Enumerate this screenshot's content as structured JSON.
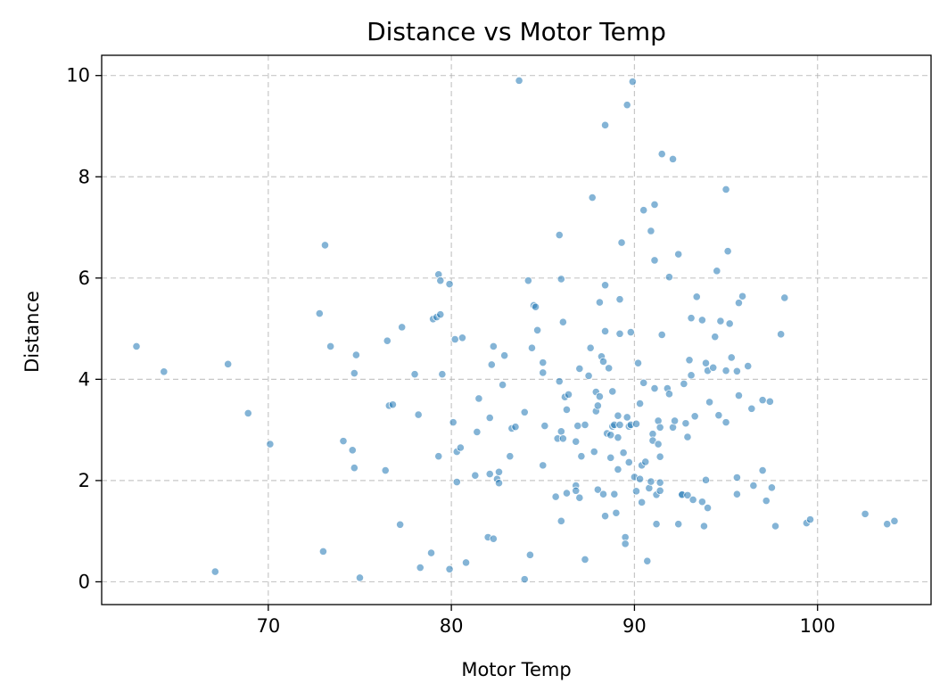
{
  "chart_data": {
    "type": "scatter",
    "title": "Distance vs Motor Temp",
    "xlabel": "Motor Temp",
    "ylabel": "Distance",
    "xlim": [
      60.9,
      106.2
    ],
    "ylim": [
      -0.45,
      10.4
    ],
    "xticks": [
      70,
      80,
      90,
      100
    ],
    "yticks": [
      0,
      2,
      4,
      6,
      8,
      10
    ],
    "xtick_labels": [
      "70",
      "80",
      "90",
      "100"
    ],
    "ytick_labels": [
      "0",
      "2",
      "4",
      "6",
      "8",
      "10"
    ],
    "grid": true,
    "color": "#1f77b4",
    "points": [
      [
        62.8,
        4.65
      ],
      [
        64.3,
        4.15
      ],
      [
        67.1,
        0.2
      ],
      [
        67.8,
        4.3
      ],
      [
        68.9,
        3.33
      ],
      [
        70.1,
        2.72
      ],
      [
        72.8,
        5.3
      ],
      [
        73.0,
        0.6
      ],
      [
        73.1,
        6.65
      ],
      [
        73.4,
        4.65
      ],
      [
        74.1,
        2.78
      ],
      [
        74.6,
        2.6
      ],
      [
        74.7,
        4.12
      ],
      [
        74.7,
        2.25
      ],
      [
        74.8,
        4.48
      ],
      [
        75.0,
        0.08
      ],
      [
        76.4,
        2.2
      ],
      [
        76.5,
        4.76
      ],
      [
        76.6,
        3.48
      ],
      [
        76.8,
        3.5
      ],
      [
        77.2,
        1.13
      ],
      [
        77.3,
        5.03
      ],
      [
        78.0,
        4.1
      ],
      [
        78.2,
        3.3
      ],
      [
        78.3,
        0.28
      ],
      [
        78.9,
        0.57
      ],
      [
        79.0,
        5.19
      ],
      [
        79.2,
        5.23
      ],
      [
        79.3,
        2.48
      ],
      [
        79.3,
        6.07
      ],
      [
        79.4,
        5.95
      ],
      [
        79.4,
        5.28
      ],
      [
        79.5,
        4.1
      ],
      [
        79.9,
        5.88
      ],
      [
        79.9,
        0.25
      ],
      [
        80.1,
        3.15
      ],
      [
        80.2,
        4.79
      ],
      [
        80.3,
        2.57
      ],
      [
        80.3,
        1.97
      ],
      [
        80.5,
        2.65
      ],
      [
        80.6,
        4.82
      ],
      [
        80.8,
        0.38
      ],
      [
        81.3,
        2.1
      ],
      [
        81.4,
        2.96
      ],
      [
        81.5,
        3.62
      ],
      [
        82.0,
        0.88
      ],
      [
        82.1,
        2.13
      ],
      [
        82.1,
        3.24
      ],
      [
        82.2,
        4.29
      ],
      [
        82.3,
        4.65
      ],
      [
        82.3,
        0.85
      ],
      [
        82.5,
        2.03
      ],
      [
        82.6,
        2.17
      ],
      [
        82.6,
        1.95
      ],
      [
        82.8,
        3.89
      ],
      [
        82.9,
        4.47
      ],
      [
        83.2,
        2.48
      ],
      [
        83.3,
        3.03
      ],
      [
        83.5,
        3.06
      ],
      [
        83.7,
        9.9
      ],
      [
        84.0,
        3.35
      ],
      [
        84.0,
        0.05
      ],
      [
        84.2,
        5.95
      ],
      [
        84.3,
        0.53
      ],
      [
        84.4,
        4.62
      ],
      [
        84.5,
        5.46
      ],
      [
        84.6,
        5.43
      ],
      [
        84.7,
        4.97
      ],
      [
        85.0,
        4.13
      ],
      [
        85.0,
        2.3
      ],
      [
        85.0,
        4.33
      ],
      [
        85.1,
        3.08
      ],
      [
        85.7,
        1.68
      ],
      [
        85.8,
        2.83
      ],
      [
        85.9,
        3.96
      ],
      [
        85.9,
        6.85
      ],
      [
        86.0,
        5.98
      ],
      [
        86.0,
        2.97
      ],
      [
        86.0,
        1.2
      ],
      [
        86.1,
        5.13
      ],
      [
        86.1,
        2.83
      ],
      [
        86.2,
        3.65
      ],
      [
        86.3,
        1.75
      ],
      [
        86.3,
        3.4
      ],
      [
        86.4,
        3.7
      ],
      [
        86.8,
        1.9
      ],
      [
        86.8,
        1.8
      ],
      [
        86.8,
        2.77
      ],
      [
        86.9,
        3.08
      ],
      [
        87.0,
        4.21
      ],
      [
        87.0,
        1.66
      ],
      [
        87.1,
        2.48
      ],
      [
        87.3,
        0.44
      ],
      [
        87.3,
        3.1
      ],
      [
        87.5,
        4.07
      ],
      [
        87.6,
        4.62
      ],
      [
        87.7,
        7.59
      ],
      [
        87.8,
        2.57
      ],
      [
        87.9,
        3.75
      ],
      [
        87.9,
        3.37
      ],
      [
        88.0,
        1.82
      ],
      [
        88.0,
        3.48
      ],
      [
        88.1,
        3.66
      ],
      [
        88.1,
        5.52
      ],
      [
        88.2,
        4.45
      ],
      [
        88.3,
        1.73
      ],
      [
        88.3,
        4.35
      ],
      [
        88.4,
        5.86
      ],
      [
        88.4,
        9.02
      ],
      [
        88.4,
        4.95
      ],
      [
        88.4,
        1.3
      ],
      [
        88.5,
        2.93
      ],
      [
        88.6,
        4.22
      ],
      [
        88.7,
        2.9
      ],
      [
        88.7,
        2.45
      ],
      [
        88.8,
        3.76
      ],
      [
        88.8,
        3.07
      ],
      [
        88.9,
        1.73
      ],
      [
        88.9,
        3.1
      ],
      [
        89.0,
        1.36
      ],
      [
        89.1,
        2.85
      ],
      [
        89.1,
        3.28
      ],
      [
        89.1,
        2.22
      ],
      [
        89.2,
        5.58
      ],
      [
        89.2,
        3.1
      ],
      [
        89.2,
        4.9
      ],
      [
        89.3,
        6.7
      ],
      [
        89.4,
        2.55
      ],
      [
        89.5,
        0.88
      ],
      [
        89.5,
        0.75
      ],
      [
        89.6,
        3.25
      ],
      [
        89.6,
        9.42
      ],
      [
        89.7,
        3.07
      ],
      [
        89.7,
        2.36
      ],
      [
        89.8,
        4.93
      ],
      [
        89.8,
        3.1
      ],
      [
        89.9,
        9.88
      ],
      [
        90.0,
        2.07
      ],
      [
        90.1,
        1.79
      ],
      [
        90.1,
        3.12
      ],
      [
        90.2,
        4.32
      ],
      [
        90.3,
        3.52
      ],
      [
        90.3,
        2.03
      ],
      [
        90.4,
        2.3
      ],
      [
        90.4,
        1.57
      ],
      [
        90.5,
        3.93
      ],
      [
        90.5,
        7.34
      ],
      [
        90.6,
        2.37
      ],
      [
        90.7,
        0.41
      ],
      [
        90.8,
        1.85
      ],
      [
        90.9,
        6.93
      ],
      [
        90.9,
        1.98
      ],
      [
        91.0,
        2.92
      ],
      [
        91.0,
        2.79
      ],
      [
        91.1,
        6.35
      ],
      [
        91.1,
        7.45
      ],
      [
        91.1,
        3.82
      ],
      [
        91.2,
        1.72
      ],
      [
        91.2,
        1.14
      ],
      [
        91.3,
        3.18
      ],
      [
        91.3,
        2.72
      ],
      [
        91.4,
        1.8
      ],
      [
        91.4,
        1.96
      ],
      [
        91.4,
        2.47
      ],
      [
        91.4,
        3.05
      ],
      [
        91.5,
        4.88
      ],
      [
        91.5,
        8.45
      ],
      [
        91.8,
        3.82
      ],
      [
        91.9,
        6.02
      ],
      [
        91.9,
        3.71
      ],
      [
        92.1,
        8.35
      ],
      [
        92.1,
        3.05
      ],
      [
        92.2,
        3.18
      ],
      [
        92.4,
        6.47
      ],
      [
        92.4,
        1.14
      ],
      [
        92.6,
        1.73
      ],
      [
        92.6,
        1.72
      ],
      [
        92.7,
        3.91
      ],
      [
        92.8,
        3.13
      ],
      [
        92.9,
        2.86
      ],
      [
        92.9,
        1.71
      ],
      [
        93.0,
        4.38
      ],
      [
        93.1,
        4.08
      ],
      [
        93.1,
        5.21
      ],
      [
        93.2,
        1.62
      ],
      [
        93.3,
        3.27
      ],
      [
        93.4,
        5.63
      ],
      [
        93.7,
        5.17
      ],
      [
        93.7,
        1.58
      ],
      [
        93.8,
        1.1
      ],
      [
        93.9,
        2.01
      ],
      [
        93.9,
        4.32
      ],
      [
        94.0,
        1.46
      ],
      [
        94.0,
        4.17
      ],
      [
        94.1,
        3.55
      ],
      [
        94.3,
        4.23
      ],
      [
        94.4,
        4.84
      ],
      [
        94.5,
        6.14
      ],
      [
        94.6,
        3.29
      ],
      [
        94.7,
        5.15
      ],
      [
        95.0,
        3.15
      ],
      [
        95.0,
        7.75
      ],
      [
        95.0,
        4.17
      ],
      [
        95.1,
        6.53
      ],
      [
        95.2,
        5.1
      ],
      [
        95.3,
        4.43
      ],
      [
        95.6,
        1.73
      ],
      [
        95.6,
        2.06
      ],
      [
        95.6,
        4.16
      ],
      [
        95.7,
        5.51
      ],
      [
        95.7,
        3.68
      ],
      [
        95.9,
        5.64
      ],
      [
        96.2,
        4.26
      ],
      [
        96.4,
        3.42
      ],
      [
        96.5,
        1.9
      ],
      [
        97.0,
        2.2
      ],
      [
        97.0,
        3.59
      ],
      [
        97.2,
        1.6
      ],
      [
        97.4,
        3.56
      ],
      [
        97.5,
        1.86
      ],
      [
        97.7,
        1.1
      ],
      [
        98.0,
        4.89
      ],
      [
        98.2,
        5.61
      ],
      [
        99.4,
        1.16
      ],
      [
        99.6,
        1.23
      ],
      [
        102.6,
        1.34
      ],
      [
        103.8,
        1.14
      ],
      [
        104.2,
        1.2
      ]
    ]
  }
}
